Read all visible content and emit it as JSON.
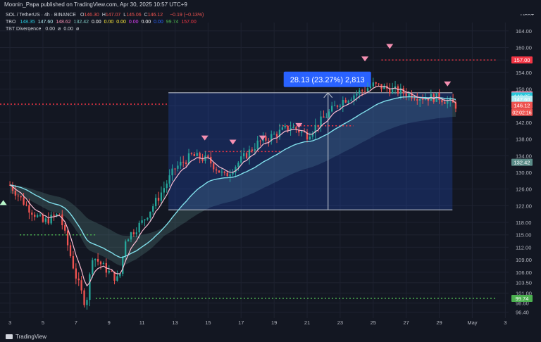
{
  "header": {
    "publisher_line": "Moonin_Papa published on TradingView.com, Apr 30, 2025 10:57 UTC+9",
    "currency": "USDT"
  },
  "legend": {
    "symbol": "SOL / TetherUS · 4h · BINANCE",
    "ohlc": [
      {
        "label": "O",
        "value": "146.30"
      },
      {
        "label": "H",
        "value": "147.07"
      },
      {
        "label": "L",
        "value": "145.06"
      },
      {
        "label": "C",
        "value": "146.12"
      }
    ],
    "change": "−0.19 (−0.13%)",
    "tbo_label": "TBO",
    "tbo_values": [
      "148.35",
      "147.60",
      "148.62",
      "132.42",
      "0.00",
      "0.00",
      "0.00",
      "0.00",
      "0.00",
      "0.00",
      "99.74",
      "157.00"
    ],
    "tbo_colors": [
      "#26c6da",
      "#b2ebf2",
      "#f48fb1",
      "#80cbc4",
      "#ffffff",
      "#ffeb3b",
      "#ffeb3b",
      "#e040fb",
      "#ffffff",
      "#2962ff",
      "#4caf50",
      "#f23645"
    ],
    "divergence_label": "TBT Divergence",
    "divergence_values": [
      "0.00",
      "ø",
      "0.00",
      "ø"
    ]
  },
  "footer": {
    "brand": "TradingView",
    "logo_icon": "tradingview-logo-icon"
  },
  "measure_label": "28.13 (23.27%) 2,813",
  "colors": {
    "up": "#26a69a",
    "down": "#ef5350",
    "bg": "#131722",
    "fast_line": "#f8bbd0",
    "slow_line": "#80deea",
    "resistance": "#f23645",
    "support": "#4caf50",
    "box": "#2962ff"
  },
  "chart_data": {
    "type": "candlestick",
    "timeframe": "4h",
    "x_ticks": [
      "3",
      "5",
      "7",
      "9",
      "11",
      "13",
      "15",
      "17",
      "19",
      "21",
      "23",
      "25",
      "27",
      "29",
      "May",
      "3"
    ],
    "y_ticks": [
      "164.00",
      "160.00",
      "157.00",
      "154.00",
      "150.00",
      "146.00",
      "142.00",
      "138.00",
      "134.00",
      "130.00",
      "126.00",
      "122.00",
      "118.00",
      "115.00",
      "112.00",
      "109.00",
      "106.00",
      "103.50",
      "101.00",
      "98.60",
      "96.40"
    ],
    "ylim": [
      95.0,
      166.0
    ],
    "price_labels": [
      {
        "value": 157.0,
        "text": "157.00",
        "color": "#f23645"
      },
      {
        "value": 148.62,
        "text": "148.62",
        "color": "#f48fb1"
      },
      {
        "value": 148.35,
        "text": "148.35",
        "color": "#26c6da"
      },
      {
        "value": 147.6,
        "text": "147.60",
        "color": "#b2ebf2"
      },
      {
        "value": 146.12,
        "text": "146.12",
        "color": "#ef5350"
      },
      {
        "value": 132.42,
        "text": "132.42",
        "color": "#5c8d89"
      },
      {
        "value": 99.74,
        "text": "99.74",
        "color": "#4caf50"
      }
    ],
    "countdown": "02:02:16",
    "measure": {
      "from_price": 121.0,
      "to_price": 149.13,
      "change": 28.13,
      "percent": 23.27
    },
    "anchors": [
      {
        "date": "3",
        "price": 127
      },
      {
        "date": "4",
        "price": 122
      },
      {
        "date": "5",
        "price": 118
      },
      {
        "date": "6",
        "price": 120
      },
      {
        "date": "7",
        "price": 105
      },
      {
        "date": "7.6",
        "price": 98
      },
      {
        "date": "8",
        "price": 110
      },
      {
        "date": "9",
        "price": 106
      },
      {
        "date": "9.6",
        "price": 104
      },
      {
        "date": "10",
        "price": 114
      },
      {
        "date": "11",
        "price": 118
      },
      {
        "date": "12",
        "price": 124
      },
      {
        "date": "13",
        "price": 131
      },
      {
        "date": "14",
        "price": 134
      },
      {
        "date": "15",
        "price": 133
      },
      {
        "date": "16",
        "price": 129
      },
      {
        "date": "17",
        "price": 133
      },
      {
        "date": "18",
        "price": 137
      },
      {
        "date": "19",
        "price": 139
      },
      {
        "date": "20",
        "price": 141
      },
      {
        "date": "21",
        "price": 139
      },
      {
        "date": "22",
        "price": 143
      },
      {
        "date": "23",
        "price": 147
      },
      {
        "date": "24",
        "price": 149
      },
      {
        "date": "25",
        "price": 151
      },
      {
        "date": "26",
        "price": 150
      },
      {
        "date": "27",
        "price": 149
      },
      {
        "date": "28",
        "price": 148
      },
      {
        "date": "29",
        "price": 148
      },
      {
        "date": "30",
        "price": 146.12
      }
    ]
  }
}
